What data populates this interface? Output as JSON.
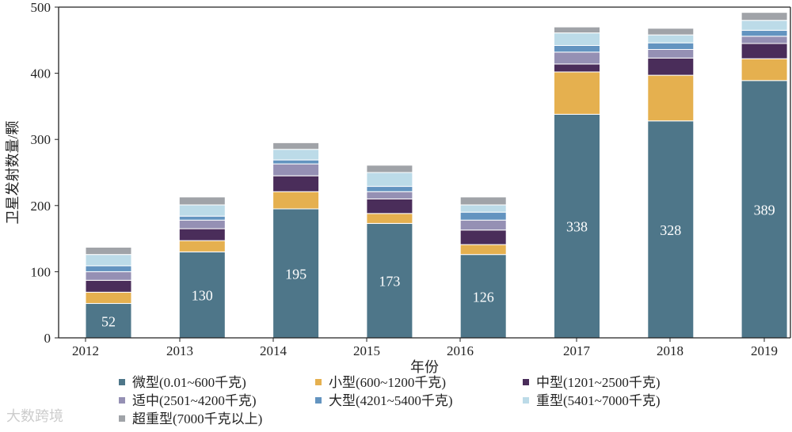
{
  "chart_data": {
    "type": "bar",
    "stacked": true,
    "title": "",
    "xlabel": "年份",
    "ylabel": "卫星发射数量/颗",
    "ylim": [
      0,
      500
    ],
    "yticks": [
      0,
      100,
      200,
      300,
      400,
      500
    ],
    "categories": [
      "2012",
      "2013",
      "2014",
      "2015",
      "2016",
      "2017",
      "2018",
      "2019"
    ],
    "series": [
      {
        "name": "微型(0.01~600千克)",
        "color": "#4e7689",
        "values": [
          52,
          130,
          195,
          173,
          126,
          338,
          328,
          389
        ],
        "labeled": true
      },
      {
        "name": "小型(600~1200千克)",
        "color": "#e5b04f",
        "values": [
          17,
          17,
          26,
          15,
          15,
          64,
          69,
          33
        ]
      },
      {
        "name": "中型(1201~2500千克)",
        "color": "#4a2d5a",
        "values": [
          18,
          18,
          24,
          22,
          22,
          12,
          26,
          23
        ]
      },
      {
        "name": "适中(2501~4200千克)",
        "color": "#9590b4",
        "values": [
          13,
          13,
          18,
          11,
          15,
          18,
          13,
          11
        ]
      },
      {
        "name": "大型(4201~5400千克)",
        "color": "#6394c0",
        "values": [
          9,
          6,
          6,
          8,
          12,
          10,
          10,
          9
        ]
      },
      {
        "name": "重型(5401~7000千克)",
        "color": "#bcdbe8",
        "values": [
          17,
          17,
          16,
          21,
          11,
          19,
          12,
          15
        ]
      },
      {
        "name": "超重型(7000千克以上)",
        "color": "#a0a3a8",
        "values": [
          11,
          12,
          10,
          11,
          12,
          9,
          10,
          12
        ]
      }
    ],
    "legend": "bottom",
    "grid": false
  },
  "watermark": "大数跨境"
}
